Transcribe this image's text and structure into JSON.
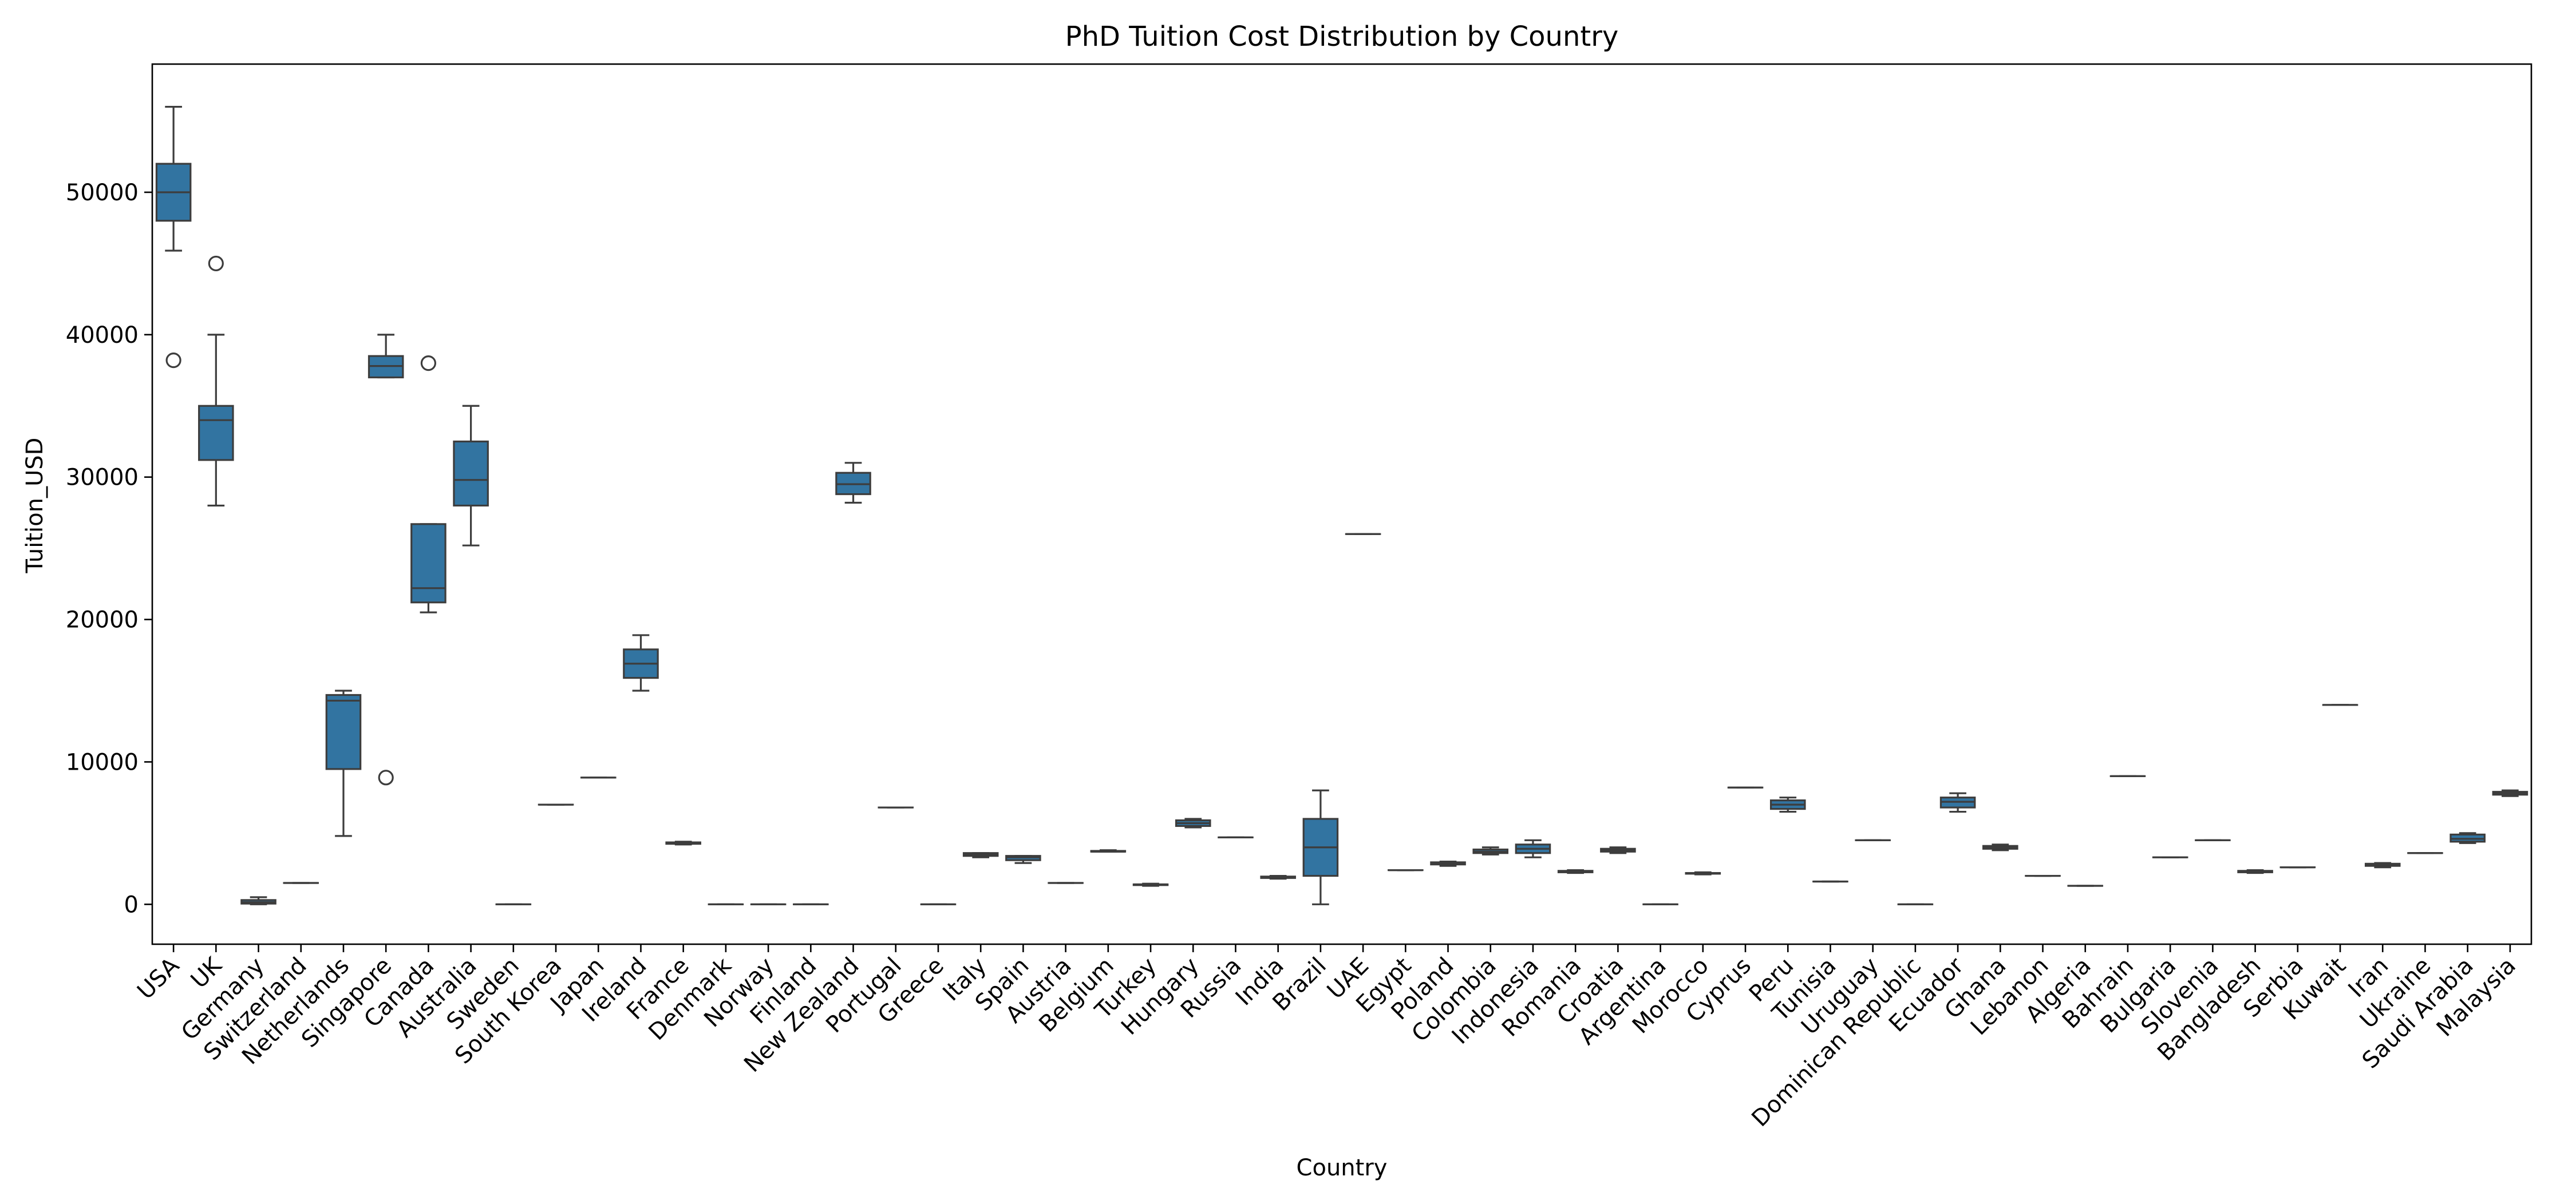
{
  "chart_data": {
    "type": "box",
    "title": "PhD Tuition Cost Distribution by Country",
    "xlabel": "Country",
    "ylabel": "Tuition_USD",
    "ylim": [
      -2800,
      59000
    ],
    "yticks": [
      0,
      10000,
      20000,
      30000,
      40000,
      50000
    ],
    "ytick_labels": [
      "0",
      "10000",
      "20000",
      "30000",
      "40000",
      "50000"
    ],
    "grid": false,
    "legend": "none",
    "box_color": "#3274a1",
    "line_color": "#3d3d3d",
    "categories": [
      "USA",
      "UK",
      "Germany",
      "Switzerland",
      "Netherlands",
      "Singapore",
      "Canada",
      "Australia",
      "Sweden",
      "South Korea",
      "Japan",
      "Ireland",
      "France",
      "Denmark",
      "Norway",
      "Finland",
      "New Zealand",
      "Portugal",
      "Greece",
      "Italy",
      "Spain",
      "Austria",
      "Belgium",
      "Turkey",
      "Hungary",
      "Russia",
      "India",
      "Brazil",
      "UAE",
      "Egypt",
      "Poland",
      "Colombia",
      "Indonesia",
      "Romania",
      "Croatia",
      "Argentina",
      "Morocco",
      "Cyprus",
      "Peru",
      "Tunisia",
      "Uruguay",
      "Dominican Republic",
      "Ecuador",
      "Ghana",
      "Lebanon",
      "Algeria",
      "Bahrain",
      "Bulgaria",
      "Slovenia",
      "Bangladesh",
      "Serbia",
      "Kuwait",
      "Iran",
      "Ukraine",
      "Saudi Arabia",
      "Malaysia"
    ],
    "boxes": [
      {
        "whislo": 45900,
        "q1": 48000,
        "med": 50000,
        "q3": 52000,
        "whishi": 56000,
        "fliers": [
          38200
        ]
      },
      {
        "whislo": 28000,
        "q1": 31200,
        "med": 34000,
        "q3": 35000,
        "whishi": 40000,
        "fliers": [
          45000
        ]
      },
      {
        "whislo": 0,
        "q1": 50,
        "med": 150,
        "q3": 300,
        "whishi": 500,
        "fliers": []
      },
      {
        "whislo": 1500,
        "q1": 1500,
        "med": 1500,
        "q3": 1500,
        "whishi": 1500,
        "fliers": []
      },
      {
        "whislo": 4800,
        "q1": 9500,
        "med": 14300,
        "q3": 14700,
        "whishi": 15000,
        "fliers": []
      },
      {
        "whislo": 37000,
        "q1": 37000,
        "med": 37800,
        "q3": 38500,
        "whishi": 40000,
        "fliers": [
          8900
        ]
      },
      {
        "whislo": 20500,
        "q1": 21200,
        "med": 22200,
        "q3": 26700,
        "whishi": 26700,
        "fliers": [
          38000
        ]
      },
      {
        "whislo": 25200,
        "q1": 28000,
        "med": 29800,
        "q3": 32500,
        "whishi": 35000,
        "fliers": []
      },
      {
        "whislo": 0,
        "q1": 0,
        "med": 0,
        "q3": 0,
        "whishi": 0,
        "fliers": []
      },
      {
        "whislo": 7000,
        "q1": 7000,
        "med": 7000,
        "q3": 7000,
        "whishi": 7000,
        "fliers": []
      },
      {
        "whislo": 8900,
        "q1": 8900,
        "med": 8900,
        "q3": 8900,
        "whishi": 8900,
        "fliers": []
      },
      {
        "whislo": 15000,
        "q1": 15900,
        "med": 16900,
        "q3": 17900,
        "whishi": 18900,
        "fliers": []
      },
      {
        "whislo": 4200,
        "q1": 4250,
        "med": 4300,
        "q3": 4350,
        "whishi": 4400,
        "fliers": []
      },
      {
        "whislo": 0,
        "q1": 0,
        "med": 0,
        "q3": 0,
        "whishi": 0,
        "fliers": []
      },
      {
        "whislo": 0,
        "q1": 0,
        "med": 0,
        "q3": 0,
        "whishi": 0,
        "fliers": []
      },
      {
        "whislo": 0,
        "q1": 0,
        "med": 0,
        "q3": 0,
        "whishi": 0,
        "fliers": []
      },
      {
        "whislo": 28200,
        "q1": 28800,
        "med": 29500,
        "q3": 30300,
        "whishi": 31000,
        "fliers": []
      },
      {
        "whislo": 6800,
        "q1": 6800,
        "med": 6800,
        "q3": 6800,
        "whishi": 6800,
        "fliers": []
      },
      {
        "whislo": 0,
        "q1": 0,
        "med": 0,
        "q3": 0,
        "whishi": 0,
        "fliers": []
      },
      {
        "whislo": 3300,
        "q1": 3400,
        "med": 3500,
        "q3": 3600,
        "whishi": 3600,
        "fliers": []
      },
      {
        "whislo": 2900,
        "q1": 3100,
        "med": 3300,
        "q3": 3400,
        "whishi": 3400,
        "fliers": []
      },
      {
        "whislo": 1500,
        "q1": 1500,
        "med": 1500,
        "q3": 1500,
        "whishi": 1500,
        "fliers": []
      },
      {
        "whislo": 3700,
        "q1": 3700,
        "med": 3700,
        "q3": 3750,
        "whishi": 3800,
        "fliers": []
      },
      {
        "whislo": 1300,
        "q1": 1350,
        "med": 1400,
        "q3": 1400,
        "whishi": 1450,
        "fliers": []
      },
      {
        "whislo": 5400,
        "q1": 5500,
        "med": 5700,
        "q3": 5900,
        "whishi": 6000,
        "fliers": []
      },
      {
        "whislo": 4700,
        "q1": 4700,
        "med": 4700,
        "q3": 4700,
        "whishi": 4700,
        "fliers": []
      },
      {
        "whislo": 1800,
        "q1": 1850,
        "med": 1900,
        "q3": 1950,
        "whishi": 2000,
        "fliers": []
      },
      {
        "whislo": 0,
        "q1": 2000,
        "med": 4000,
        "q3": 6000,
        "whishi": 8000,
        "fliers": []
      },
      {
        "whislo": 26000,
        "q1": 26000,
        "med": 26000,
        "q3": 26000,
        "whishi": 26000,
        "fliers": []
      },
      {
        "whislo": 2400,
        "q1": 2400,
        "med": 2400,
        "q3": 2400,
        "whishi": 2400,
        "fliers": []
      },
      {
        "whislo": 2700,
        "q1": 2800,
        "med": 2900,
        "q3": 2950,
        "whishi": 3000,
        "fliers": []
      },
      {
        "whislo": 3500,
        "q1": 3600,
        "med": 3700,
        "q3": 3850,
        "whishi": 4000,
        "fliers": []
      },
      {
        "whislo": 3300,
        "q1": 3600,
        "med": 3900,
        "q3": 4200,
        "whishi": 4500,
        "fliers": []
      },
      {
        "whislo": 2200,
        "q1": 2250,
        "med": 2300,
        "q3": 2350,
        "whishi": 2400,
        "fliers": []
      },
      {
        "whislo": 3600,
        "q1": 3700,
        "med": 3800,
        "q3": 3900,
        "whishi": 4000,
        "fliers": []
      },
      {
        "whislo": 0,
        "q1": 0,
        "med": 0,
        "q3": 0,
        "whishi": 0,
        "fliers": []
      },
      {
        "whislo": 2100,
        "q1": 2150,
        "med": 2200,
        "q3": 2200,
        "whishi": 2250,
        "fliers": []
      },
      {
        "whislo": 8200,
        "q1": 8200,
        "med": 8200,
        "q3": 8200,
        "whishi": 8200,
        "fliers": []
      },
      {
        "whislo": 6500,
        "q1": 6700,
        "med": 7000,
        "q3": 7300,
        "whishi": 7500,
        "fliers": []
      },
      {
        "whislo": 1600,
        "q1": 1600,
        "med": 1600,
        "q3": 1600,
        "whishi": 1600,
        "fliers": []
      },
      {
        "whislo": 4500,
        "q1": 4500,
        "med": 4500,
        "q3": 4500,
        "whishi": 4500,
        "fliers": []
      },
      {
        "whislo": 0,
        "q1": 0,
        "med": 0,
        "q3": 0,
        "whishi": 0,
        "fliers": []
      },
      {
        "whislo": 6500,
        "q1": 6800,
        "med": 7200,
        "q3": 7500,
        "whishi": 7800,
        "fliers": []
      },
      {
        "whislo": 3800,
        "q1": 3900,
        "med": 4000,
        "q3": 4100,
        "whishi": 4200,
        "fliers": []
      },
      {
        "whislo": 2000,
        "q1": 2000,
        "med": 2000,
        "q3": 2000,
        "whishi": 2000,
        "fliers": []
      },
      {
        "whislo": 1300,
        "q1": 1300,
        "med": 1300,
        "q3": 1300,
        "whishi": 1300,
        "fliers": []
      },
      {
        "whislo": 9000,
        "q1": 9000,
        "med": 9000,
        "q3": 9000,
        "whishi": 9000,
        "fliers": []
      },
      {
        "whislo": 3300,
        "q1": 3300,
        "med": 3300,
        "q3": 3300,
        "whishi": 3300,
        "fliers": []
      },
      {
        "whislo": 4500,
        "q1": 4500,
        "med": 4500,
        "q3": 4500,
        "whishi": 4500,
        "fliers": []
      },
      {
        "whislo": 2200,
        "q1": 2250,
        "med": 2300,
        "q3": 2350,
        "whishi": 2400,
        "fliers": []
      },
      {
        "whislo": 2600,
        "q1": 2600,
        "med": 2600,
        "q3": 2600,
        "whishi": 2600,
        "fliers": []
      },
      {
        "whislo": 14000,
        "q1": 14000,
        "med": 14000,
        "q3": 14000,
        "whishi": 14000,
        "fliers": []
      },
      {
        "whislo": 2600,
        "q1": 2700,
        "med": 2800,
        "q3": 2850,
        "whishi": 2900,
        "fliers": []
      },
      {
        "whislo": 3600,
        "q1": 3600,
        "med": 3600,
        "q3": 3600,
        "whishi": 3600,
        "fliers": []
      },
      {
        "whislo": 4300,
        "q1": 4400,
        "med": 4600,
        "q3": 4900,
        "whishi": 5000,
        "fliers": []
      },
      {
        "whislo": 7600,
        "q1": 7700,
        "med": 7800,
        "q3": 7900,
        "whishi": 8000,
        "fliers": []
      }
    ]
  }
}
